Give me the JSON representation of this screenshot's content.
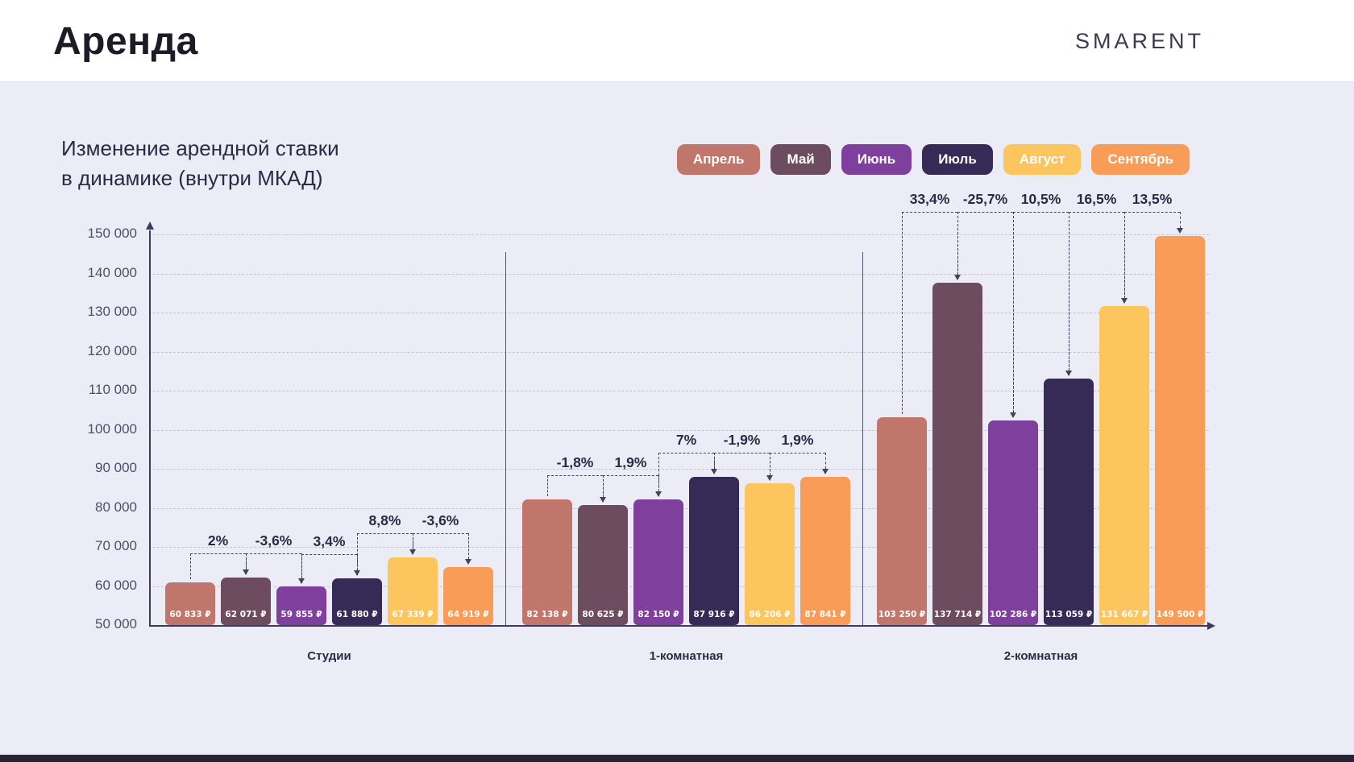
{
  "header": {
    "title": "Аренда",
    "brand": "SMARENT"
  },
  "chart_data": {
    "type": "bar",
    "title": "Изменение арендной ставки в динамике (внутри МКАД)",
    "title_lines": [
      "Изменение арендной ставки",
      "в динамике (внутри МКАД)"
    ],
    "currency": "₽",
    "ylim": [
      50000,
      150000
    ],
    "grid": true,
    "legend_position": "top-right",
    "y_ticks": [
      {
        "value": 150000,
        "label": "150 000"
      },
      {
        "value": 140000,
        "label": "140 000"
      },
      {
        "value": 130000,
        "label": "130 000"
      },
      {
        "value": 120000,
        "label": "120 000"
      },
      {
        "value": 110000,
        "label": "110 000"
      },
      {
        "value": 100000,
        "label": "100 000"
      },
      {
        "value": 90000,
        "label": "90 000"
      },
      {
        "value": 80000,
        "label": "80 000"
      },
      {
        "value": 70000,
        "label": "70 000"
      },
      {
        "value": 60000,
        "label": "60 000"
      },
      {
        "value": 50000,
        "label": "50 000"
      }
    ],
    "months": [
      {
        "name": "Апрель",
        "color": "#c0766a"
      },
      {
        "name": "Май",
        "color": "#6d4c5f"
      },
      {
        "name": "Июнь",
        "color": "#7e3f9d"
      },
      {
        "name": "Июль",
        "color": "#362b56"
      },
      {
        "name": "Август",
        "color": "#fdc55e"
      },
      {
        "name": "Сентябрь",
        "color": "#f89c57"
      }
    ],
    "groups": [
      {
        "label": "Студии",
        "values": [
          60833,
          62071,
          59855,
          61880,
          67339,
          64919
        ],
        "value_labels": [
          "60 833 ₽",
          "62 071 ₽",
          "59 855 ₽",
          "61 880 ₽",
          "67 339 ₽",
          "64 919 ₽"
        ],
        "changes": [
          "2%",
          "-3,6%",
          "3,4%",
          "8,8%",
          "-3,6%"
        ]
      },
      {
        "label": "1-комнатная",
        "values": [
          82138,
          80625,
          82150,
          87916,
          86206,
          87841
        ],
        "value_labels": [
          "82 138 ₽",
          "80 625 ₽",
          "82 150 ₽",
          "87 916 ₽",
          "86 206 ₽",
          "87 841 ₽"
        ],
        "changes": [
          "-1,8%",
          "1,9%",
          "7%",
          "-1,9%",
          "1,9%"
        ]
      },
      {
        "label": "2-комнатная",
        "values": [
          103250,
          137714,
          102286,
          113059,
          131667,
          149500
        ],
        "value_labels": [
          "103 250 ₽",
          "137 714 ₽",
          "102 286 ₽",
          "113 059 ₽",
          "131 667 ₽",
          "149 500 ₽"
        ],
        "changes": [
          "33,4%",
          "-25,7%",
          "10,5%",
          "16,5%",
          "13,5%"
        ]
      }
    ]
  }
}
